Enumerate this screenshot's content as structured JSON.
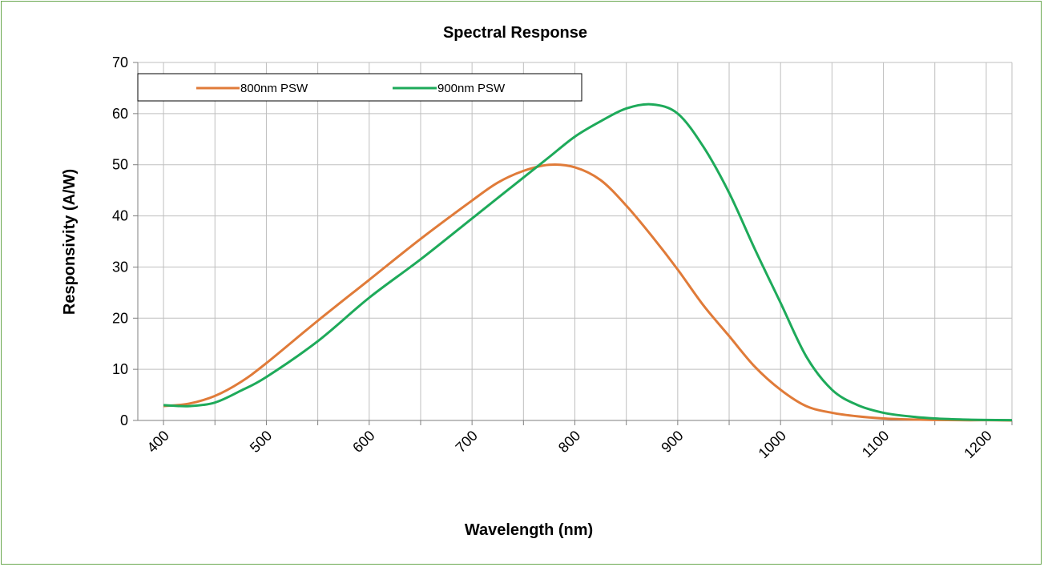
{
  "chart_data": {
    "type": "line",
    "title": "Spectral Response",
    "xlabel": "Wavelength (nm)",
    "ylabel": "Responsivity (A/W)",
    "xlim": [
      375,
      1225
    ],
    "ylim": [
      0,
      70
    ],
    "xticks": [
      400,
      450,
      500,
      550,
      600,
      650,
      700,
      750,
      800,
      850,
      900,
      950,
      1000,
      1050,
      1100,
      1150,
      1200
    ],
    "xtick_labels": [
      {
        "value": 400,
        "label": "400"
      },
      {
        "value": 500,
        "label": "500"
      },
      {
        "value": 600,
        "label": "600"
      },
      {
        "value": 700,
        "label": "700"
      },
      {
        "value": 800,
        "label": "800"
      },
      {
        "value": 900,
        "label": "900"
      },
      {
        "value": 1000,
        "label": "1000"
      },
      {
        "value": 1100,
        "label": "1100"
      },
      {
        "value": 1200,
        "label": "1200"
      }
    ],
    "yticks": [
      0,
      10,
      20,
      30,
      40,
      50,
      60,
      70
    ],
    "grid": true,
    "legend_position": "top-left",
    "series": [
      {
        "name": "800nm PSW",
        "color": "#e07b39",
        "x": [
          400,
          425,
          450,
          475,
          500,
          550,
          600,
          650,
          700,
          725,
          750,
          775,
          800,
          825,
          850,
          875,
          900,
          925,
          950,
          975,
          1000,
          1025,
          1050,
          1075,
          1100,
          1125,
          1150,
          1175,
          1200,
          1225
        ],
        "y": [
          2.8,
          3.3,
          4.8,
          7.5,
          11.2,
          19.5,
          27.5,
          35.5,
          43.0,
          46.5,
          48.8,
          50.0,
          49.5,
          47.0,
          42.0,
          36.0,
          29.5,
          22.5,
          16.5,
          10.5,
          6.0,
          2.8,
          1.5,
          0.8,
          0.4,
          0.2,
          0.1,
          0.05,
          0.05,
          0.0
        ]
      },
      {
        "name": "900nm PSW",
        "color": "#1eaa5a",
        "x": [
          400,
          425,
          450,
          475,
          500,
          550,
          600,
          650,
          700,
          725,
          750,
          775,
          800,
          825,
          850,
          875,
          900,
          925,
          950,
          975,
          1000,
          1025,
          1050,
          1075,
          1100,
          1125,
          1150,
          1175,
          1200,
          1225
        ],
        "y": [
          3.0,
          2.8,
          3.5,
          5.8,
          8.5,
          15.5,
          24.0,
          31.5,
          39.5,
          43.5,
          47.5,
          51.5,
          55.5,
          58.5,
          61.0,
          61.8,
          60.0,
          53.5,
          44.5,
          33.5,
          23.0,
          12.5,
          6.0,
          3.0,
          1.5,
          0.8,
          0.4,
          0.2,
          0.1,
          0.05
        ]
      }
    ]
  }
}
